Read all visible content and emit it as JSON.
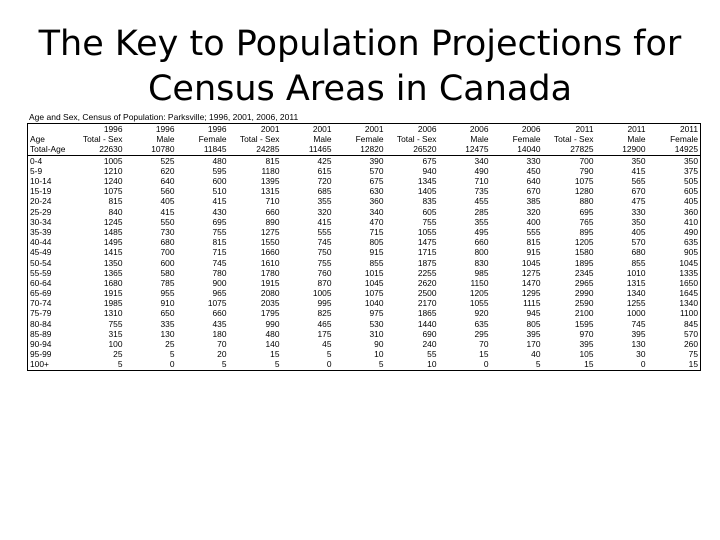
{
  "slide": {
    "title_line1": "The Key to Population Projections for",
    "title_line2": "Census Areas in Canada"
  },
  "table": {
    "caption": "Age and Sex, Census of Population: Parksville; 1996, 2001, 2006, 2011",
    "years": [
      "1996",
      "1996",
      "1996",
      "2001",
      "2001",
      "2001",
      "2006",
      "2006",
      "2006",
      "2011",
      "2011",
      "2011"
    ],
    "row_header_label": "Age",
    "sexes": [
      "Total - Sex",
      "Male",
      "Female",
      "Total - Sex",
      "Male",
      "Female",
      "Total - Sex",
      "Male",
      "Female",
      "Total - Sex",
      "Male",
      "Female"
    ],
    "total_row": {
      "label": "Total-Age",
      "values": [
        "22630",
        "10780",
        "11845",
        "24285",
        "11465",
        "12820",
        "26520",
        "12475",
        "14040",
        "27825",
        "12900",
        "14925"
      ]
    },
    "rows": [
      {
        "age": "0-4",
        "values": [
          "1005",
          "525",
          "480",
          "815",
          "425",
          "390",
          "675",
          "340",
          "330",
          "700",
          "350",
          "350"
        ]
      },
      {
        "age": "5-9",
        "values": [
          "1210",
          "620",
          "595",
          "1180",
          "615",
          "570",
          "940",
          "490",
          "450",
          "790",
          "415",
          "375"
        ]
      },
      {
        "age": "10-14",
        "values": [
          "1240",
          "640",
          "600",
          "1395",
          "720",
          "675",
          "1345",
          "710",
          "640",
          "1075",
          "565",
          "505"
        ]
      },
      {
        "age": "15-19",
        "values": [
          "1075",
          "560",
          "510",
          "1315",
          "685",
          "630",
          "1405",
          "735",
          "670",
          "1280",
          "670",
          "605"
        ]
      },
      {
        "age": "20-24",
        "values": [
          "815",
          "405",
          "415",
          "710",
          "355",
          "360",
          "835",
          "455",
          "385",
          "880",
          "475",
          "405"
        ]
      },
      {
        "age": "25-29",
        "values": [
          "840",
          "415",
          "430",
          "660",
          "320",
          "340",
          "605",
          "285",
          "320",
          "695",
          "330",
          "360"
        ]
      },
      {
        "age": "30-34",
        "values": [
          "1245",
          "550",
          "695",
          "890",
          "415",
          "470",
          "755",
          "355",
          "400",
          "765",
          "350",
          "410"
        ]
      },
      {
        "age": "35-39",
        "values": [
          "1485",
          "730",
          "755",
          "1275",
          "555",
          "715",
          "1055",
          "495",
          "555",
          "895",
          "405",
          "490"
        ]
      },
      {
        "age": "40-44",
        "values": [
          "1495",
          "680",
          "815",
          "1550",
          "745",
          "805",
          "1475",
          "660",
          "815",
          "1205",
          "570",
          "635"
        ]
      },
      {
        "age": "45-49",
        "values": [
          "1415",
          "700",
          "715",
          "1660",
          "750",
          "915",
          "1715",
          "800",
          "915",
          "1580",
          "680",
          "905"
        ]
      },
      {
        "age": "50-54",
        "values": [
          "1350",
          "600",
          "745",
          "1610",
          "755",
          "855",
          "1875",
          "830",
          "1045",
          "1895",
          "855",
          "1045"
        ]
      },
      {
        "age": "55-59",
        "values": [
          "1365",
          "580",
          "780",
          "1780",
          "760",
          "1015",
          "2255",
          "985",
          "1275",
          "2345",
          "1010",
          "1335"
        ]
      },
      {
        "age": "60-64",
        "values": [
          "1680",
          "785",
          "900",
          "1915",
          "870",
          "1045",
          "2620",
          "1150",
          "1470",
          "2965",
          "1315",
          "1650"
        ]
      },
      {
        "age": "65-69",
        "values": [
          "1915",
          "955",
          "965",
          "2080",
          "1005",
          "1075",
          "2500",
          "1205",
          "1295",
          "2990",
          "1340",
          "1645"
        ]
      },
      {
        "age": "70-74",
        "values": [
          "1985",
          "910",
          "1075",
          "2035",
          "995",
          "1040",
          "2170",
          "1055",
          "1115",
          "2590",
          "1255",
          "1340"
        ]
      },
      {
        "age": "75-79",
        "values": [
          "1310",
          "650",
          "660",
          "1795",
          "825",
          "975",
          "1865",
          "920",
          "945",
          "2100",
          "1000",
          "1100"
        ]
      },
      {
        "age": "80-84",
        "values": [
          "755",
          "335",
          "435",
          "990",
          "465",
          "530",
          "1440",
          "635",
          "805",
          "1595",
          "745",
          "845"
        ]
      },
      {
        "age": "85-89",
        "values": [
          "315",
          "130",
          "180",
          "480",
          "175",
          "310",
          "690",
          "295",
          "395",
          "970",
          "395",
          "570"
        ]
      },
      {
        "age": "90-94",
        "values": [
          "100",
          "25",
          "70",
          "140",
          "45",
          "90",
          "240",
          "70",
          "170",
          "395",
          "130",
          "260"
        ]
      },
      {
        "age": "95-99",
        "values": [
          "25",
          "5",
          "20",
          "15",
          "5",
          "10",
          "55",
          "15",
          "40",
          "105",
          "30",
          "75"
        ]
      },
      {
        "age": "100+",
        "values": [
          "5",
          "0",
          "5",
          "5",
          "0",
          "5",
          "10",
          "0",
          "5",
          "15",
          "0",
          "15"
        ]
      }
    ]
  }
}
